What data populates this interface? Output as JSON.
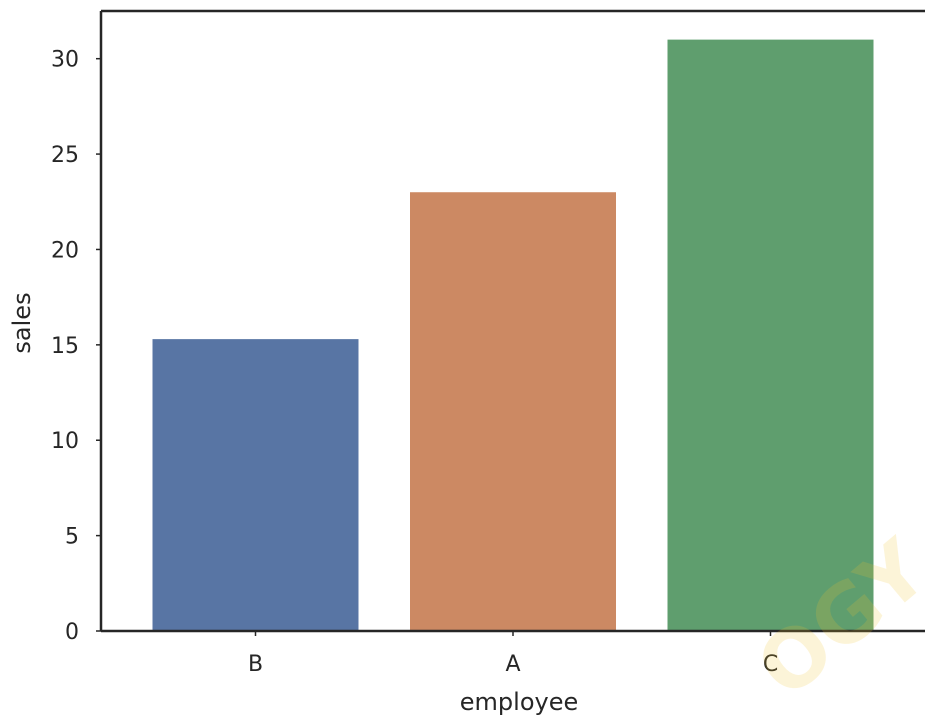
{
  "chart_data": {
    "type": "bar",
    "categories": [
      "B",
      "A",
      "C"
    ],
    "values": [
      15.3,
      23.0,
      31.0
    ],
    "colors": [
      "#5875a4",
      "#cc8963",
      "#5f9e6e"
    ],
    "xlabel": "employee",
    "ylabel": "sales",
    "ylim": [
      0,
      32.5
    ],
    "yticks": [
      0,
      5,
      10,
      15,
      20,
      25,
      30
    ],
    "grid": false,
    "legend": "none"
  },
  "watermark": {
    "text": "OGY",
    "color": "#f4c430"
  }
}
